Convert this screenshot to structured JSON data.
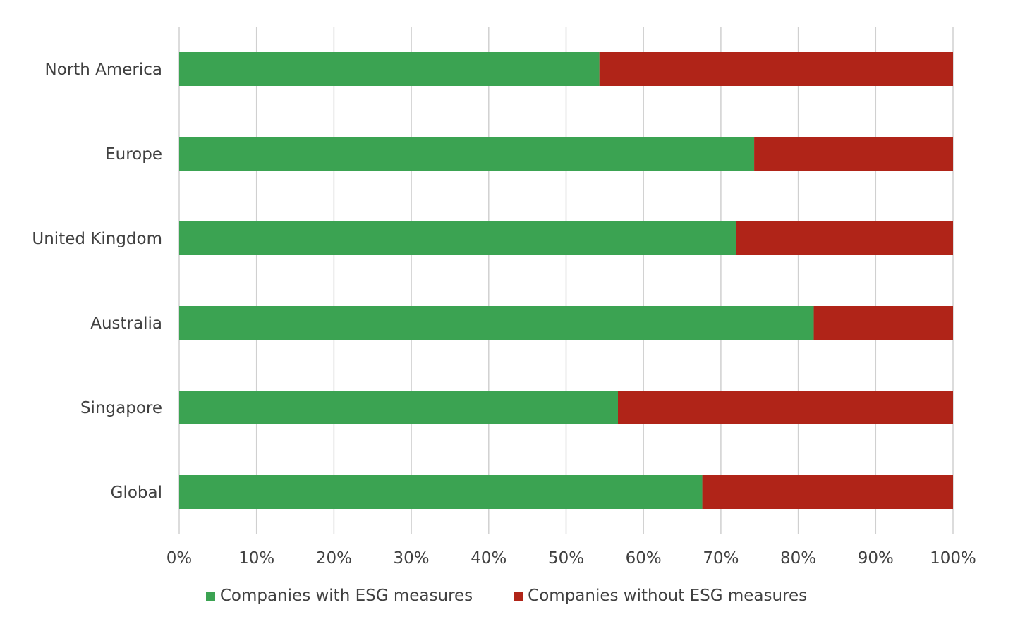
{
  "chart_data": {
    "type": "bar",
    "orientation": "horizontal",
    "stacked": "percent",
    "categories": [
      "North America",
      "Europe",
      "United Kingdom",
      "Australia",
      "Singapore",
      "Global"
    ],
    "series": [
      {
        "name": "Companies with ESG measures",
        "color": "#3ba352",
        "values": [
          54.3,
          74.3,
          72.0,
          82.0,
          56.7,
          67.6
        ]
      },
      {
        "name": "Companies without ESG measures",
        "color": "#b02418",
        "values": [
          45.7,
          25.7,
          28.0,
          18.0,
          43.3,
          32.4
        ]
      }
    ],
    "x_ticks": [
      "0%",
      "10%",
      "20%",
      "30%",
      "40%",
      "50%",
      "60%",
      "70%",
      "80%",
      "90%",
      "100%"
    ],
    "xlim": [
      0,
      100
    ],
    "grid": "vertical",
    "legend_position": "bottom"
  }
}
